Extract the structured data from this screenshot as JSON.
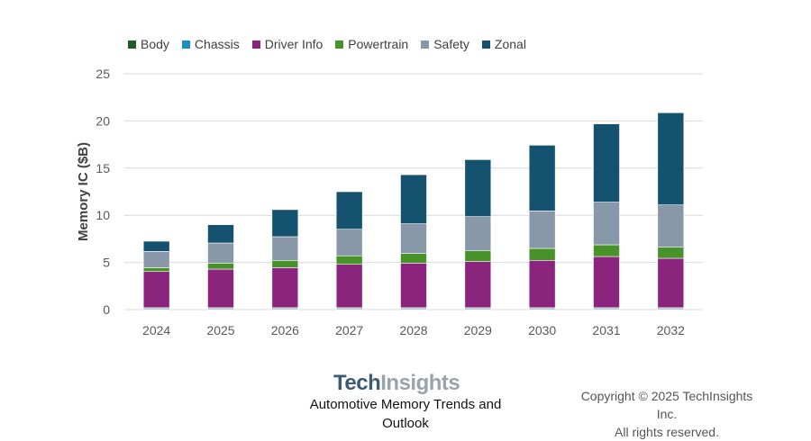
{
  "chart_data": {
    "type": "bar",
    "stacked": true,
    "categories": [
      "2024",
      "2025",
      "2026",
      "2027",
      "2028",
      "2029",
      "2030",
      "2031",
      "2032"
    ],
    "series": [
      {
        "name": "Body",
        "color": "#1e5e24",
        "values": [
          0.1,
          0.1,
          0.1,
          0.1,
          0.1,
          0.1,
          0.1,
          0.1,
          0.1
        ]
      },
      {
        "name": "Chassis",
        "color": "#1b8fc4",
        "values": [
          0.1,
          0.1,
          0.1,
          0.1,
          0.1,
          0.1,
          0.1,
          0.1,
          0.1
        ]
      },
      {
        "name": "Driver Info",
        "color": "#8b247d",
        "values": [
          3.84,
          4.09,
          4.25,
          4.6,
          4.73,
          4.89,
          5.02,
          5.43,
          5.24
        ]
      },
      {
        "name": "Powertrain",
        "color": "#48922a",
        "values": [
          0.41,
          0.64,
          0.77,
          0.9,
          1.02,
          1.14,
          1.27,
          1.24,
          1.17
        ]
      },
      {
        "name": "Safety",
        "color": "#8898a8",
        "values": [
          1.72,
          2.13,
          2.51,
          2.82,
          3.15,
          3.63,
          3.97,
          4.52,
          4.49
        ]
      },
      {
        "name": "Zonal",
        "color": "#14526f",
        "values": [
          1.08,
          1.94,
          2.87,
          3.98,
          5.2,
          6.04,
          6.97,
          8.3,
          9.77
        ]
      }
    ],
    "title": "",
    "xlabel": "",
    "ylabel": "Memory IC ($B)",
    "ylim": [
      0,
      25
    ],
    "yticks": [
      "0",
      "5",
      "10",
      "15",
      "20",
      "25"
    ],
    "grid": true,
    "legend": "top-left"
  },
  "branding": {
    "logo_part1": "Tech",
    "logo_part2": "Insights",
    "subtitle": "Automotive Memory Trends and Outlook"
  },
  "copyright": {
    "line1": "Copyright © 2025 TechInsights Inc.",
    "line2": "All rights reserved."
  }
}
